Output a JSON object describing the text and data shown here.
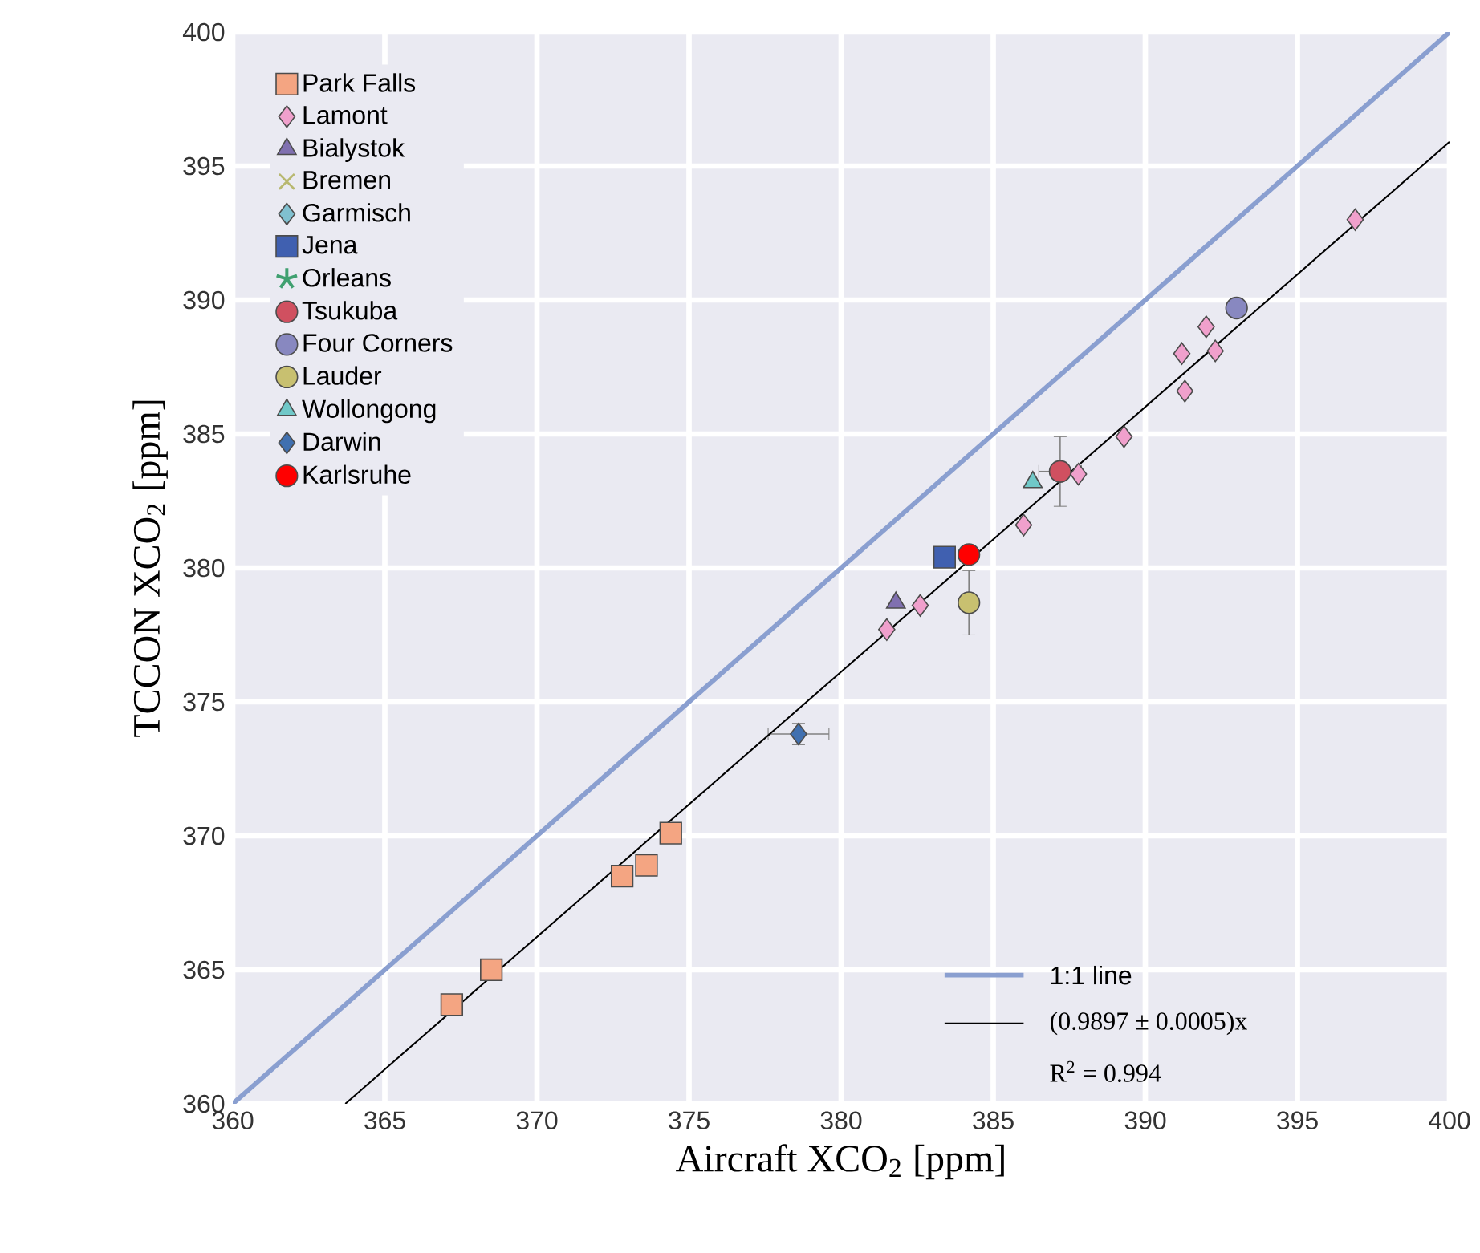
{
  "chart_data": {
    "type": "scatter",
    "xlabel": "Aircraft XCO$_{2}$ [ppm]",
    "ylabel": "TCCON XCO$_{2}$ [ppm]",
    "xlim": [
      360,
      400
    ],
    "ylim": [
      360,
      400
    ],
    "xticks": [
      360,
      365,
      370,
      375,
      380,
      385,
      390,
      395,
      400
    ],
    "yticks": [
      360,
      365,
      370,
      375,
      380,
      385,
      390,
      395,
      400
    ],
    "grid": true,
    "legend": "top left",
    "annotations": [
      "R$^{2}$ = 0.994"
    ],
    "series": [
      {
        "name": "Park Falls",
        "color": "#f4a582",
        "marker": "square",
        "x": [
          367.2,
          368.5,
          372.8,
          373.6,
          374.4
        ],
        "values": [
          363.7,
          365.0,
          368.5,
          368.9,
          370.1
        ]
      },
      {
        "name": "Lamont",
        "color": "#f0a0cc",
        "marker": "diamond",
        "x": [
          381.5,
          382.6,
          386.0,
          387.8,
          389.3,
          391.2,
          391.3,
          392.0,
          392.3,
          396.9
        ],
        "values": [
          377.7,
          378.6,
          381.6,
          383.5,
          384.9,
          388.0,
          386.6,
          389.0,
          388.1,
          393.0
        ]
      },
      {
        "name": "Bialystok",
        "color": "#8070b0",
        "marker": "triangle",
        "x": [
          381.8
        ],
        "values": [
          378.7
        ]
      },
      {
        "name": "Bremen",
        "color": "#b8b870",
        "marker": "cross"
      },
      {
        "name": "Garmisch",
        "color": "#80c0d0",
        "marker": "diamond"
      },
      {
        "name": "Jena",
        "color": "#4060b0",
        "marker": "square",
        "x": [
          383.4
        ],
        "values": [
          380.4
        ]
      },
      {
        "name": "Orleans",
        "color": "#40a070",
        "marker": "star"
      },
      {
        "name": "Tsukuba",
        "color": "#d05060",
        "marker": "circle",
        "x": [
          387.2
        ],
        "values": [
          383.6
        ],
        "errors": [
          1.3
        ],
        "xerrors": [
          0.7
        ]
      },
      {
        "name": "Four Corners",
        "color": "#8888c0",
        "marker": "circle",
        "x": [
          393.0
        ],
        "values": [
          389.7
        ]
      },
      {
        "name": "Lauder",
        "color": "#c8c070",
        "marker": "circle",
        "x": [
          384.2
        ],
        "values": [
          378.7
        ],
        "errors": [
          1.2
        ]
      },
      {
        "name": "Wollongong",
        "color": "#70c8c8",
        "marker": "triangle",
        "x": [
          386.3
        ],
        "values": [
          383.2
        ]
      },
      {
        "name": "Darwin",
        "color": "#4070b0",
        "marker": "diamond",
        "x": [
          378.6
        ],
        "values": [
          373.8
        ],
        "errors": [
          0.4
        ],
        "xerrors": [
          1.0
        ]
      },
      {
        "name": "Karlsruhe",
        "color": "#ff0000",
        "marker": "circle",
        "x": [
          384.2
        ],
        "values": [
          380.5
        ]
      },
      {
        "name": "1:1 line",
        "type": "line",
        "color": "#8a9fd0",
        "x": [
          360,
          400
        ],
        "values": [
          360,
          400
        ]
      },
      {
        "name": "(0.9897 ± 0.0005)x",
        "type": "line",
        "color": "#000000",
        "x": [
          363.7,
          400
        ],
        "values": [
          360,
          395.9
        ]
      }
    ]
  }
}
